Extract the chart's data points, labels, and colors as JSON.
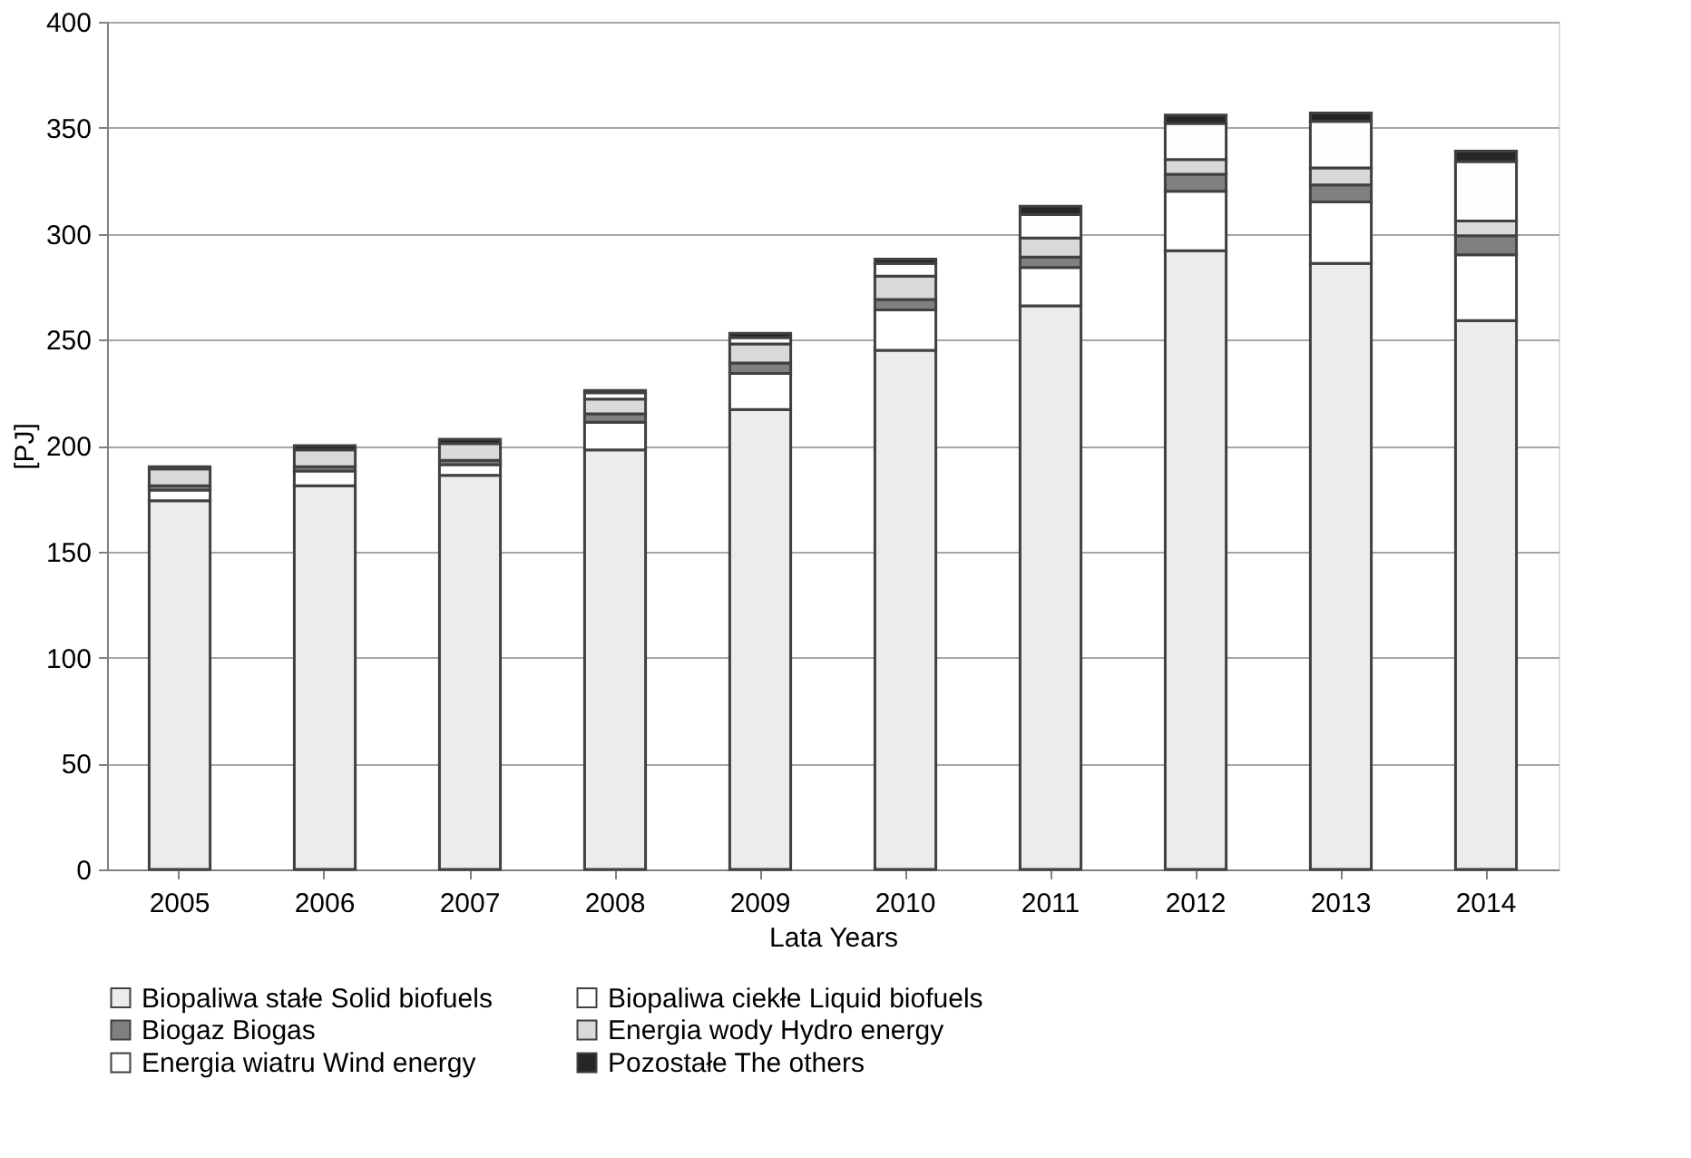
{
  "chart_data": {
    "type": "bar",
    "stacked": true,
    "xlabel": "Lata Years",
    "ylabel": "[PJ]",
    "categories": [
      "2005",
      "2006",
      "2007",
      "2008",
      "2009",
      "2010",
      "2011",
      "2012",
      "2013",
      "2014"
    ],
    "series": [
      {
        "name": "Biopaliwa stałe  Solid biofuels",
        "color": "#ececec",
        "values": [
          174,
          181,
          186,
          198,
          217,
          245,
          266,
          292,
          286,
          259
        ]
      },
      {
        "name": "Biopaliwa ciekłe  Liquid biofuels",
        "color": "#ffffff",
        "values": [
          5,
          7,
          5,
          13,
          17,
          19,
          18,
          28,
          29,
          31
        ]
      },
      {
        "name": "Biogaz  Biogas",
        "color": "#808080",
        "values": [
          2,
          2,
          2,
          4,
          5,
          5,
          5,
          8,
          8,
          9
        ]
      },
      {
        "name": "Energia wody  Hydro energy",
        "color": "#d9d9d9",
        "values": [
          8,
          8,
          8,
          7,
          9,
          11,
          9,
          7,
          8,
          7
        ]
      },
      {
        "name": "Energia wiatru  Wind energy",
        "color": "#fefefe",
        "values": [
          null,
          null,
          null,
          3,
          3,
          6,
          11,
          17,
          22,
          28
        ]
      },
      {
        "name": "Pozostałe The others",
        "color": "#262626",
        "values": [
          1,
          2,
          2,
          1,
          2,
          2,
          4,
          4,
          4,
          5
        ]
      }
    ],
    "ylim": [
      0,
      400
    ],
    "yticks": [
      0,
      50,
      100,
      150,
      200,
      250,
      300,
      350,
      400
    ],
    "grid": "y",
    "legend": "bottom"
  }
}
